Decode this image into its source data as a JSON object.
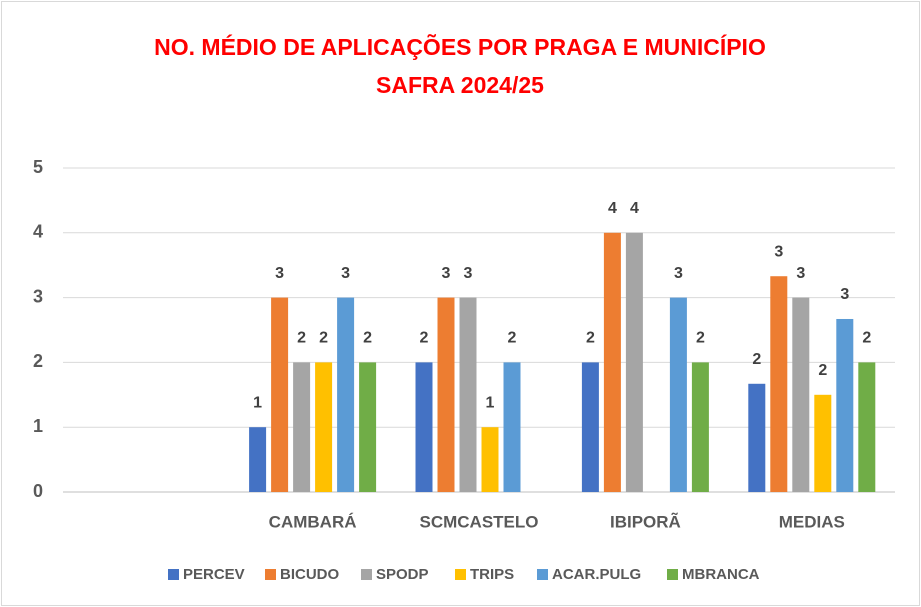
{
  "chart_data": {
    "type": "bar",
    "title": "NO. MÉDIO DE APLICAÇÕES POR PRAGA E MUNICÍPIO",
    "subtitle": "SAFRA 2024/25",
    "categories": [
      null,
      "CAMBARÁ",
      "SCMCASTELO",
      "IBIPORÃ",
      "MEDIAS"
    ],
    "series": [
      {
        "name": "PERCEV",
        "color": "#4472c4",
        "values": [
          null,
          1,
          2,
          2,
          1.67
        ],
        "value_labels": [
          null,
          "1",
          "2",
          "2",
          "2"
        ]
      },
      {
        "name": "BICUDO",
        "color": "#ed7d31",
        "values": [
          null,
          3,
          3,
          4,
          3.33
        ],
        "value_labels": [
          null,
          "3",
          "3",
          "4",
          "3"
        ]
      },
      {
        "name": "SPODP",
        "color": "#a5a5a5",
        "values": [
          null,
          2,
          3,
          4,
          3
        ],
        "value_labels": [
          null,
          "2",
          "3",
          "4",
          "3"
        ]
      },
      {
        "name": "TRIPS",
        "color": "#ffc000",
        "values": [
          null,
          2,
          1,
          null,
          1.5
        ],
        "value_labels": [
          null,
          "2",
          "1",
          null,
          "2"
        ]
      },
      {
        "name": "ACAR.PULG",
        "color": "#5b9bd5",
        "values": [
          null,
          3,
          2,
          3,
          2.67
        ],
        "value_labels": [
          null,
          "3",
          "2",
          "3",
          "3"
        ]
      },
      {
        "name": "MBRANCA",
        "color": "#70ad47",
        "values": [
          null,
          2,
          null,
          2,
          2
        ],
        "value_labels": [
          null,
          "2",
          null,
          "2",
          "2"
        ]
      }
    ],
    "ylim": [
      0,
      5
    ],
    "yticks": [
      0,
      1,
      2,
      3,
      4,
      5
    ],
    "grid": true,
    "legend": "bottom"
  }
}
